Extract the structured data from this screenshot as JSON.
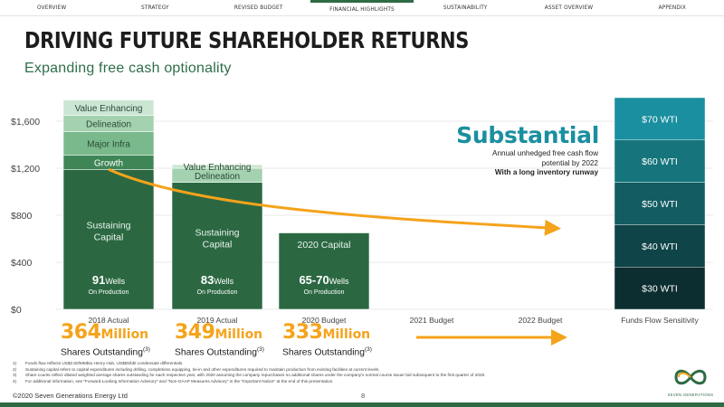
{
  "nav": {
    "tabs": [
      "OVERVIEW",
      "STRATEGY",
      "REVISED BUDGET",
      "FINANCIAL HIGHLIGHTS",
      "SUSTAINABILITY",
      "ASSET OVERVIEW",
      "APPENDIX"
    ],
    "active_index": 3
  },
  "header": {
    "title": "DRIVING FUTURE SHAREHOLDER RETURNS",
    "subtitle": "Expanding free cash optionality"
  },
  "callout": {
    "headline": "Substantial",
    "line1": "Annual unhedged free cash flow",
    "line2": "potential by 2022",
    "line3": "With a long inventory runway"
  },
  "shares": [
    {
      "value": "364",
      "unit": "Million",
      "label": "Shares Outstanding",
      "note": "(3)"
    },
    {
      "value": "349",
      "unit": "Million",
      "label": "Shares Outstanding",
      "note": "(3)"
    },
    {
      "value": "333",
      "unit": "Million",
      "label": "Shares Outstanding",
      "note": "(3)"
    }
  ],
  "footnotes": [
    {
      "n": "1)",
      "text": "Funds flow reflects US$2.50/MMbtu Henry Hub, US$55/bbl condensate differentials."
    },
    {
      "n": "2)",
      "text": "Sustaining capital refers to capital expenditures including drilling, completions equipping, tie-in and other expenditures required to maintain production from existing facilities at current levels."
    },
    {
      "n": "3)",
      "text": "Share counts reflect diluted weighted average shares outstanding for each respective year, with 2020 assuming the company repurchases no additional shares under the company's normal course issuer bid subsequent to the first quarter of 2020."
    },
    {
      "n": "4)",
      "text": "For additional information, see \"Forward-Looking Information Advisory\" and \"Non-GAAP Measures Advisory\" in the \"Important Notice\" at the end of this presentation."
    }
  ],
  "footer": {
    "copyright": "©2020 Seven Generations Energy Ltd",
    "page": "8",
    "logo_text": "SEVEN GENERATIONS"
  },
  "colors": {
    "brand_green": "#2e6b45",
    "sustaining": "#2b6842",
    "growth": "#3f8556",
    "major_infra": "#79b98c",
    "delineation": "#a4d1b0",
    "value_enhancing": "#cbe6d3",
    "arrow": "#f5a31b",
    "teal": "#1a8fa0"
  },
  "chart_data": {
    "type": "bar",
    "ylim": [
      0,
      1800
    ],
    "yticks": [
      "$0",
      "$400",
      "$800",
      "$1,200",
      "$1,600"
    ],
    "ytick_values": [
      0,
      400,
      800,
      1200,
      1600
    ],
    "categories": [
      "2018 Actual",
      "2019 Actual",
      "2020 Budget",
      "2021 Budget",
      "2022 Budget",
      "Funds Flow Sensitivity"
    ],
    "stacked_bars": [
      {
        "category": "2018 Actual",
        "segments": [
          {
            "name": "Sustaining Capital",
            "value": 1190,
            "color": "#2b6842"
          },
          {
            "name": "Growth",
            "value": 120,
            "color": "#3f8556"
          },
          {
            "name": "Major Infra",
            "value": 200,
            "color": "#79b98c"
          },
          {
            "name": "Delineation",
            "value": 140,
            "color": "#a4d1b0"
          },
          {
            "name": "Value Enhancing",
            "value": 130,
            "color": "#cbe6d3"
          }
        ],
        "wells": "91",
        "wells_unit": "Wells",
        "wells_sub": "On Production"
      },
      {
        "category": "2019 Actual",
        "segments": [
          {
            "name": "Sustaining Capital",
            "value": 1080,
            "color": "#2b6842"
          },
          {
            "name": "Delineation",
            "value": 120,
            "color": "#a4d1b0"
          },
          {
            "name": "Value Enhancing",
            "value": 30,
            "color": "#cbe6d3"
          }
        ],
        "wells": "83",
        "wells_unit": "Wells",
        "wells_sub": "On Production"
      },
      {
        "category": "2020 Budget",
        "segments": [
          {
            "name": "2020 Capital",
            "value": 650,
            "color": "#2b6842"
          }
        ],
        "wells": "65-70",
        "wells_unit": "Wells",
        "wells_sub": "On Production"
      }
    ],
    "sensitivity": {
      "category": "Funds Flow Sensitivity",
      "segments": [
        {
          "name": "$30 WTI",
          "value": 370,
          "color": "#0d2e31"
        },
        {
          "name": "$40 WTI",
          "value": 370,
          "color": "#0f4448"
        },
        {
          "name": "$50 WTI",
          "value": 370,
          "color": "#125c62"
        },
        {
          "name": "$60 WTI",
          "value": 370,
          "color": "#16757c"
        },
        {
          "name": "$70 WTI",
          "value": 370,
          "color": "#1a8fa0"
        }
      ]
    },
    "trend_arrow": {
      "from": {
        "x": "2018 Actual",
        "y": 1190
      },
      "to": {
        "x": "2022 Budget",
        "y": 690
      },
      "color": "#f5a31b"
    },
    "arrow2": {
      "from": "2021 Budget",
      "to": "2022 Budget"
    }
  }
}
